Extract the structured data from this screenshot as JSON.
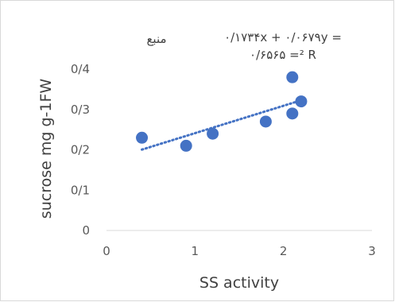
{
  "chart_data": {
    "type": "scatter",
    "title": "منبع",
    "xlabel": "SS activity",
    "ylabel": "sucrose mg g-1FW",
    "xlim": [
      0,
      3
    ],
    "ylim": [
      0,
      0.4
    ],
    "x_ticks": [
      "0",
      "1",
      "2",
      "3"
    ],
    "y_ticks": [
      "0",
      "0/1",
      "0/2",
      "0/3",
      "0/4"
    ],
    "series": [
      {
        "points": [
          {
            "x": 0.4,
            "y": 0.23
          },
          {
            "x": 0.9,
            "y": 0.21
          },
          {
            "x": 1.2,
            "y": 0.24
          },
          {
            "x": 1.8,
            "y": 0.27
          },
          {
            "x": 2.1,
            "y": 0.38
          },
          {
            "x": 2.1,
            "y": 0.29
          },
          {
            "x": 2.2,
            "y": 0.32
          }
        ],
        "color": "#4472C4"
      }
    ],
    "trendline": {
      "type": "linear",
      "style": "dotted",
      "color": "#4472C4",
      "x_range": [
        0.4,
        2.2
      ],
      "equation_line1": "۰/۱۷۳۴x + ۰/۰۶۷۹y =",
      "equation_line2": "۰/۶۵۶۵ =² R"
    },
    "grid": false,
    "legend": "none"
  }
}
